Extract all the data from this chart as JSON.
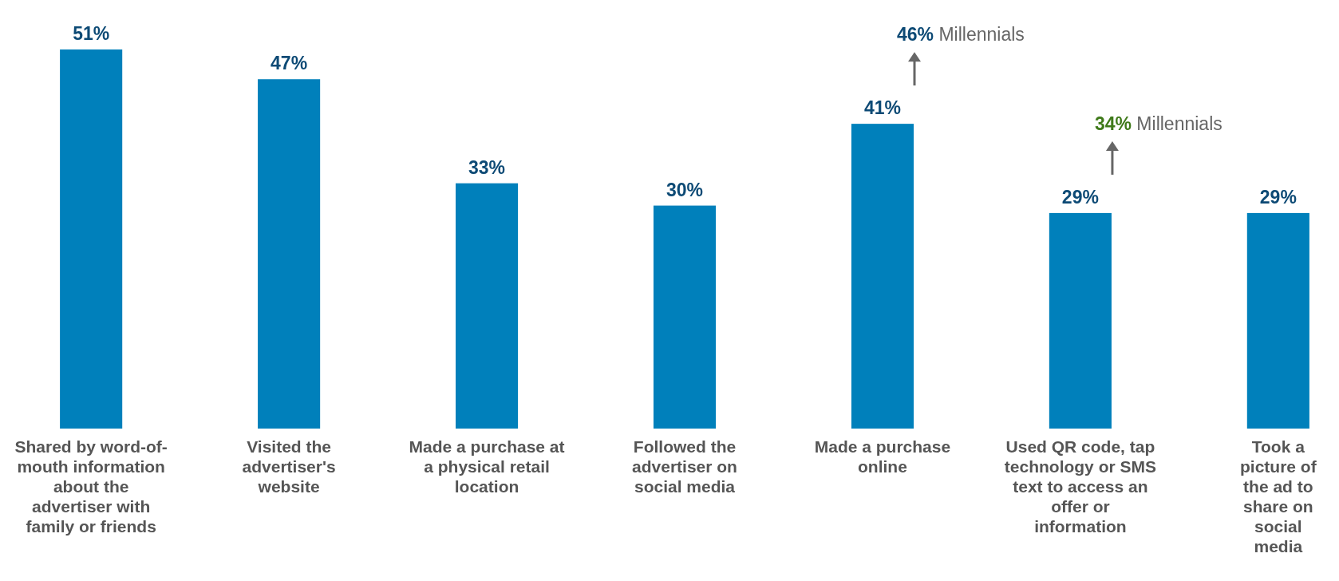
{
  "chart_data": {
    "type": "bar",
    "categories": [
      "Shared by word-of-mouth information about the advertiser with family or friends",
      "Visited the advertiser's website",
      "Made a purchase at a physical retail location",
      "Followed the advertiser on social media",
      "Made a purchase online",
      "Used QR code, tap technology or SMS text to access an offer or information",
      "Took a picture of the ad to share on social media"
    ],
    "values": [
      51,
      47,
      33,
      30,
      41,
      29,
      29
    ],
    "value_labels": [
      "51%",
      "47%",
      "33%",
      "30%",
      "41%",
      "29%",
      "29%"
    ],
    "color": "#0080bb",
    "tick_labels": "x",
    "grid": false,
    "annotations": [
      "46% Millennials",
      "34% Millennials"
    ]
  }
}
